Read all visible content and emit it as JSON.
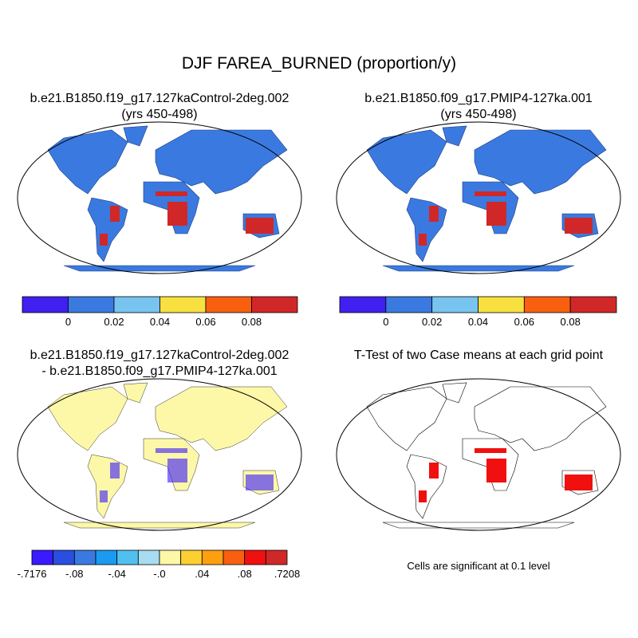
{
  "title": "DJF FAREA_BURNED (proportion/y)",
  "panels": [
    {
      "title": [
        "b.e21.B1850.f19_g17.127kaControl-2deg.002",
        "(yrs 450-498)"
      ],
      "colorbar": {
        "colors": [
          "#4020f0",
          "#3a7ae0",
          "#78c4f0",
          "#f8e040",
          "#f86010",
          "#d02828"
        ],
        "labels": [
          "0",
          "0.02",
          "0.04",
          "0.06",
          "0.08"
        ]
      }
    },
    {
      "title": [
        "b.e21.B1850.f09_g17.PMIP4-127ka.001",
        "(yrs 450-498)"
      ],
      "colorbar": {
        "colors": [
          "#4020f0",
          "#3a7ae0",
          "#78c4f0",
          "#f8e040",
          "#f86010",
          "#d02828"
        ],
        "labels": [
          "0",
          "0.02",
          "0.04",
          "0.06",
          "0.08"
        ]
      }
    },
    {
      "title": [
        "b.e21.B1850.f19_g17.127kaControl-2deg.002",
        "- b.e21.B1850.f09_g17.PMIP4-127ka.001"
      ],
      "colorbar": {
        "colors": [
          "#3a1aff",
          "#2a4ee0",
          "#3a7ae0",
          "#1a9af0",
          "#50c0f0",
          "#a8dcf0",
          "#fdf8a8",
          "#fcd030",
          "#fca010",
          "#f86010",
          "#f01010",
          "#d02828"
        ],
        "labels": [
          "-.7176",
          "-.08",
          "-.04",
          "-.0",
          ".04",
          ".08",
          ".7208"
        ]
      }
    },
    {
      "title": [
        "T-Test of two Case means at each grid point"
      ],
      "note": "Cells are significant at 0.1 level"
    }
  ]
}
